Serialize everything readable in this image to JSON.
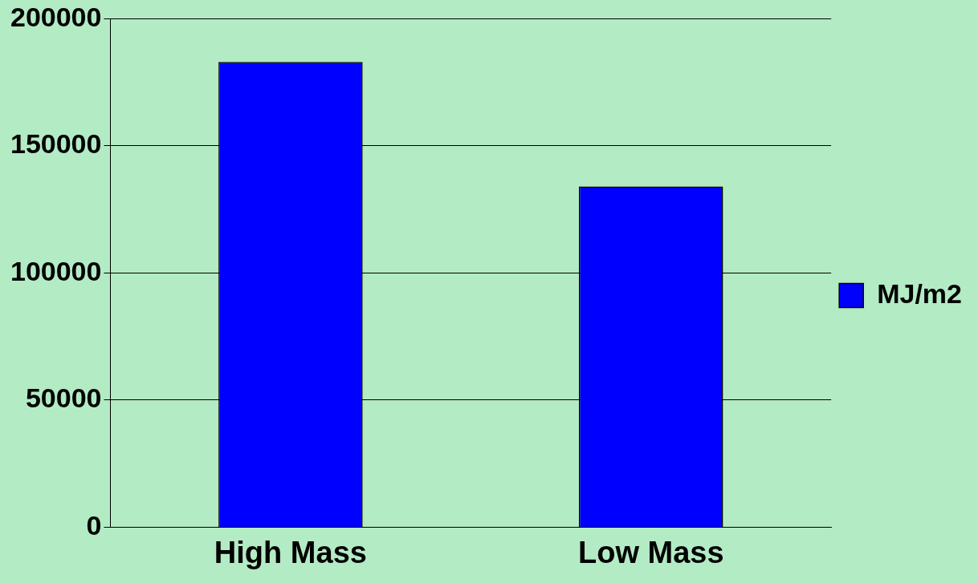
{
  "chart_data": {
    "type": "bar",
    "categories": [
      "High Mass",
      "Low Mass"
    ],
    "series": [
      {
        "name": "MJ/m2",
        "color": "#0000ff",
        "values": [
          183000,
          134000
        ]
      }
    ],
    "ylim": [
      0,
      200000
    ],
    "yticks": [
      0,
      50000,
      100000,
      150000,
      200000
    ],
    "grid": "y",
    "legend": "right"
  }
}
